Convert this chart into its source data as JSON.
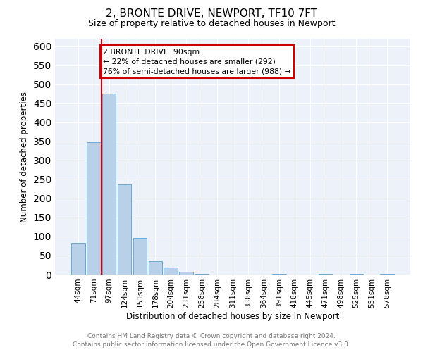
{
  "title": "2, BRONTE DRIVE, NEWPORT, TF10 7FT",
  "subtitle": "Size of property relative to detached houses in Newport",
  "xlabel": "Distribution of detached houses by size in Newport",
  "ylabel": "Number of detached properties",
  "bar_values": [
    83,
    348,
    476,
    236,
    97,
    35,
    18,
    8,
    2,
    0,
    0,
    0,
    0,
    2,
    0,
    0,
    2,
    0,
    2,
    0,
    2
  ],
  "bar_labels": [
    "44sqm",
    "71sqm",
    "97sqm",
    "124sqm",
    "151sqm",
    "178sqm",
    "204sqm",
    "231sqm",
    "258sqm",
    "284sqm",
    "311sqm",
    "338sqm",
    "364sqm",
    "391sqm",
    "418sqm",
    "445sqm",
    "471sqm",
    "498sqm",
    "525sqm",
    "551sqm",
    "578sqm"
  ],
  "bar_color": "#b8d0e8",
  "bar_edgecolor": "#6aaad4",
  "highlight_line_color": "#cc0000",
  "annotation_text": "2 BRONTE DRIVE: 90sqm\n← 22% of detached houses are smaller (292)\n76% of semi-detached houses are larger (988) →",
  "annotation_box_edgecolor": "#cc0000",
  "ylim": [
    0,
    620
  ],
  "yticks": [
    0,
    50,
    100,
    150,
    200,
    250,
    300,
    350,
    400,
    450,
    500,
    550,
    600
  ],
  "footer_line1": "Contains HM Land Registry data © Crown copyright and database right 2024.",
  "footer_line2": "Contains public sector information licensed under the Open Government Licence v3.0.",
  "background_color": "#edf2fa",
  "title_fontsize": 11,
  "subtitle_fontsize": 9,
  "ylabel_fontsize": 8.5,
  "xlabel_fontsize": 8.5,
  "tick_fontsize": 7.5,
  "footer_fontsize": 6.5
}
